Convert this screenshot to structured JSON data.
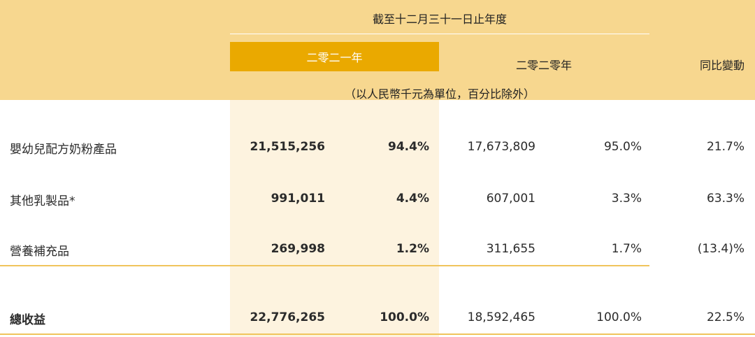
{
  "header": {
    "period": "截至十二月三十一日止年度",
    "year_2021": "二零二一年",
    "year_2020": "二零二零年",
    "yoy": "同比變動",
    "unit_note": "（以人民幣千元為單位，百分比除外）"
  },
  "rows": [
    {
      "label": "嬰幼兒配方奶粉產品",
      "v2021": "21,515,256",
      "p2021": "94.4%",
      "v2020": "17,673,809",
      "p2020": "95.0%",
      "yoy": "21.7%"
    },
    {
      "label": "其他乳製品*",
      "v2021": "991,011",
      "p2021": "4.4%",
      "v2020": "607,001",
      "p2020": "3.3%",
      "yoy": "63.3%"
    },
    {
      "label": "營養補充品",
      "v2021": "269,998",
      "p2021": "1.2%",
      "v2020": "311,655",
      "p2020": "1.7%",
      "yoy": "(13.4)%"
    }
  ],
  "total": {
    "label": "總收益",
    "v2021": "22,776,265",
    "p2021": "100.0%",
    "v2020": "18,592,465",
    "p2020": "100.0%",
    "yoy": "22.5%"
  },
  "colors": {
    "header_band": "#f7d78f",
    "highlight_label": "#eaa900",
    "highlight_column": "#fdf3df",
    "rule": "#f0c45c"
  }
}
